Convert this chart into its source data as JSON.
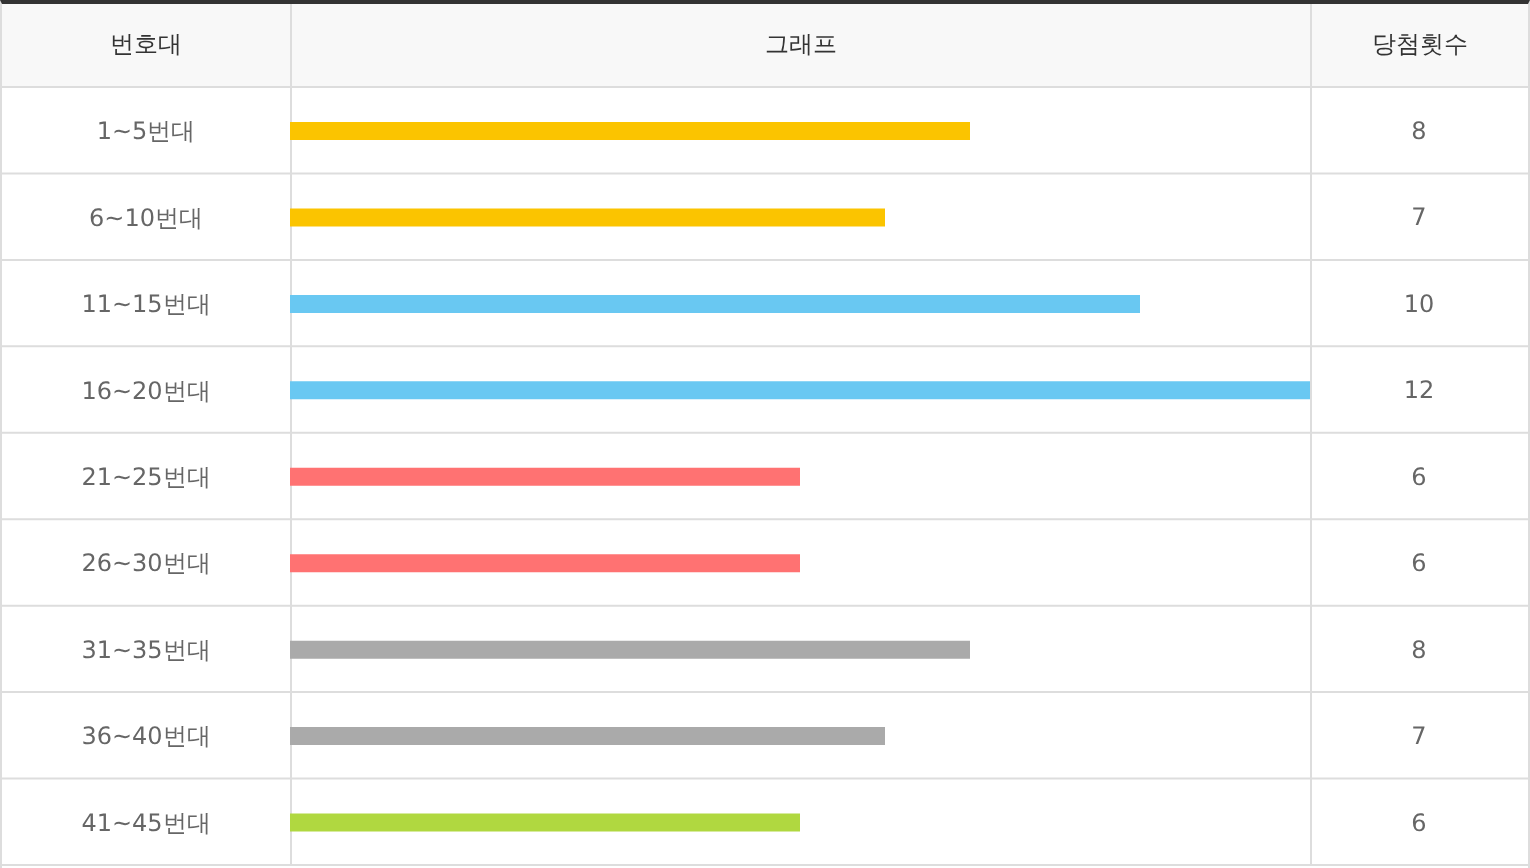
{
  "chart_data": {
    "type": "bar",
    "orientation": "horizontal",
    "xlabel": "그래프",
    "ylabel": "번호대",
    "annotations": [
      "당첨횟수"
    ],
    "categories": [
      "1~5번대",
      "6~10번대",
      "11~15번대",
      "16~20번대",
      "21~25번대",
      "26~30번대",
      "31~35번대",
      "36~40번대",
      "41~45번대"
    ],
    "values": [
      8,
      7,
      10,
      12,
      6,
      6,
      8,
      7,
      6
    ],
    "colors": [
      "#fbc400",
      "#fbc400",
      "#69c8f2",
      "#69c8f2",
      "#ff7272",
      "#ff7272",
      "#aaaaaa",
      "#aaaaaa",
      "#b0d840"
    ],
    "xlim": [
      0,
      12
    ],
    "tick_labels": "y",
    "grid": true,
    "data_labels": true
  }
}
